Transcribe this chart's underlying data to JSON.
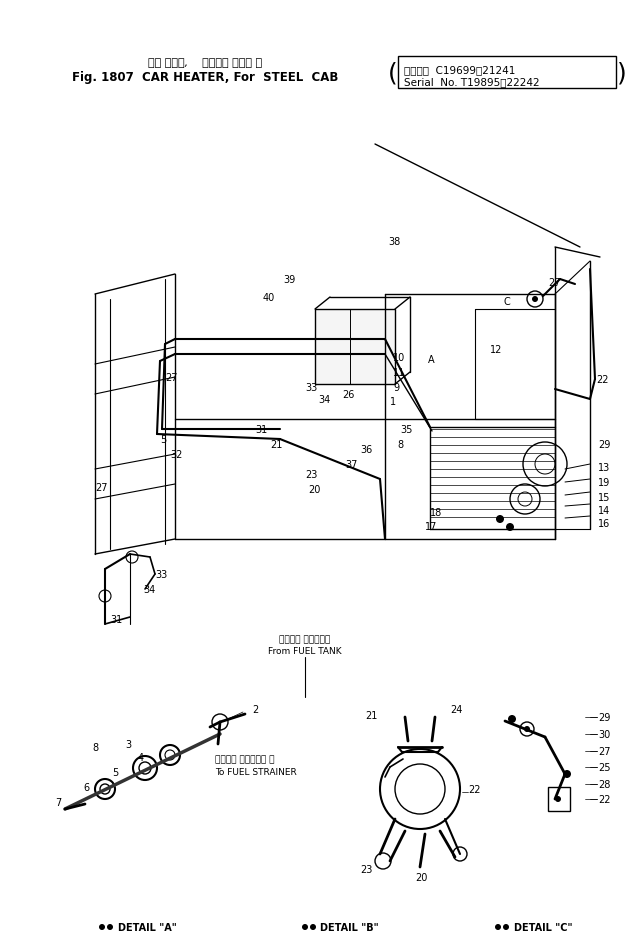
{
  "title_jp": "カー ヒータ,    スチール キャブ 用",
  "title_en": "Fig. 1807  CAR HEATER, For  STEEL  CAB",
  "serial_jp": "適用号簿  C19699～21241",
  "serial_en": "Serial  No. T19895～22242",
  "detail_a_lbl": "DETAIL \"A\"",
  "detail_b_lbl": "DETAIL \"B\"",
  "detail_c_lbl": "DETAIL \"C\"",
  "from_fuel_jp": "フェエル タンクから",
  "from_fuel_en": "From FUEL TANK",
  "to_strainer_jp": "フェエル ストレーナ ヘ",
  "to_strainer_en": "To FUEL STRAINER",
  "bg_color": "#ffffff",
  "line_color": "#000000",
  "fig_width": 6.31,
  "fig_height": 9.53,
  "dpi": 100
}
